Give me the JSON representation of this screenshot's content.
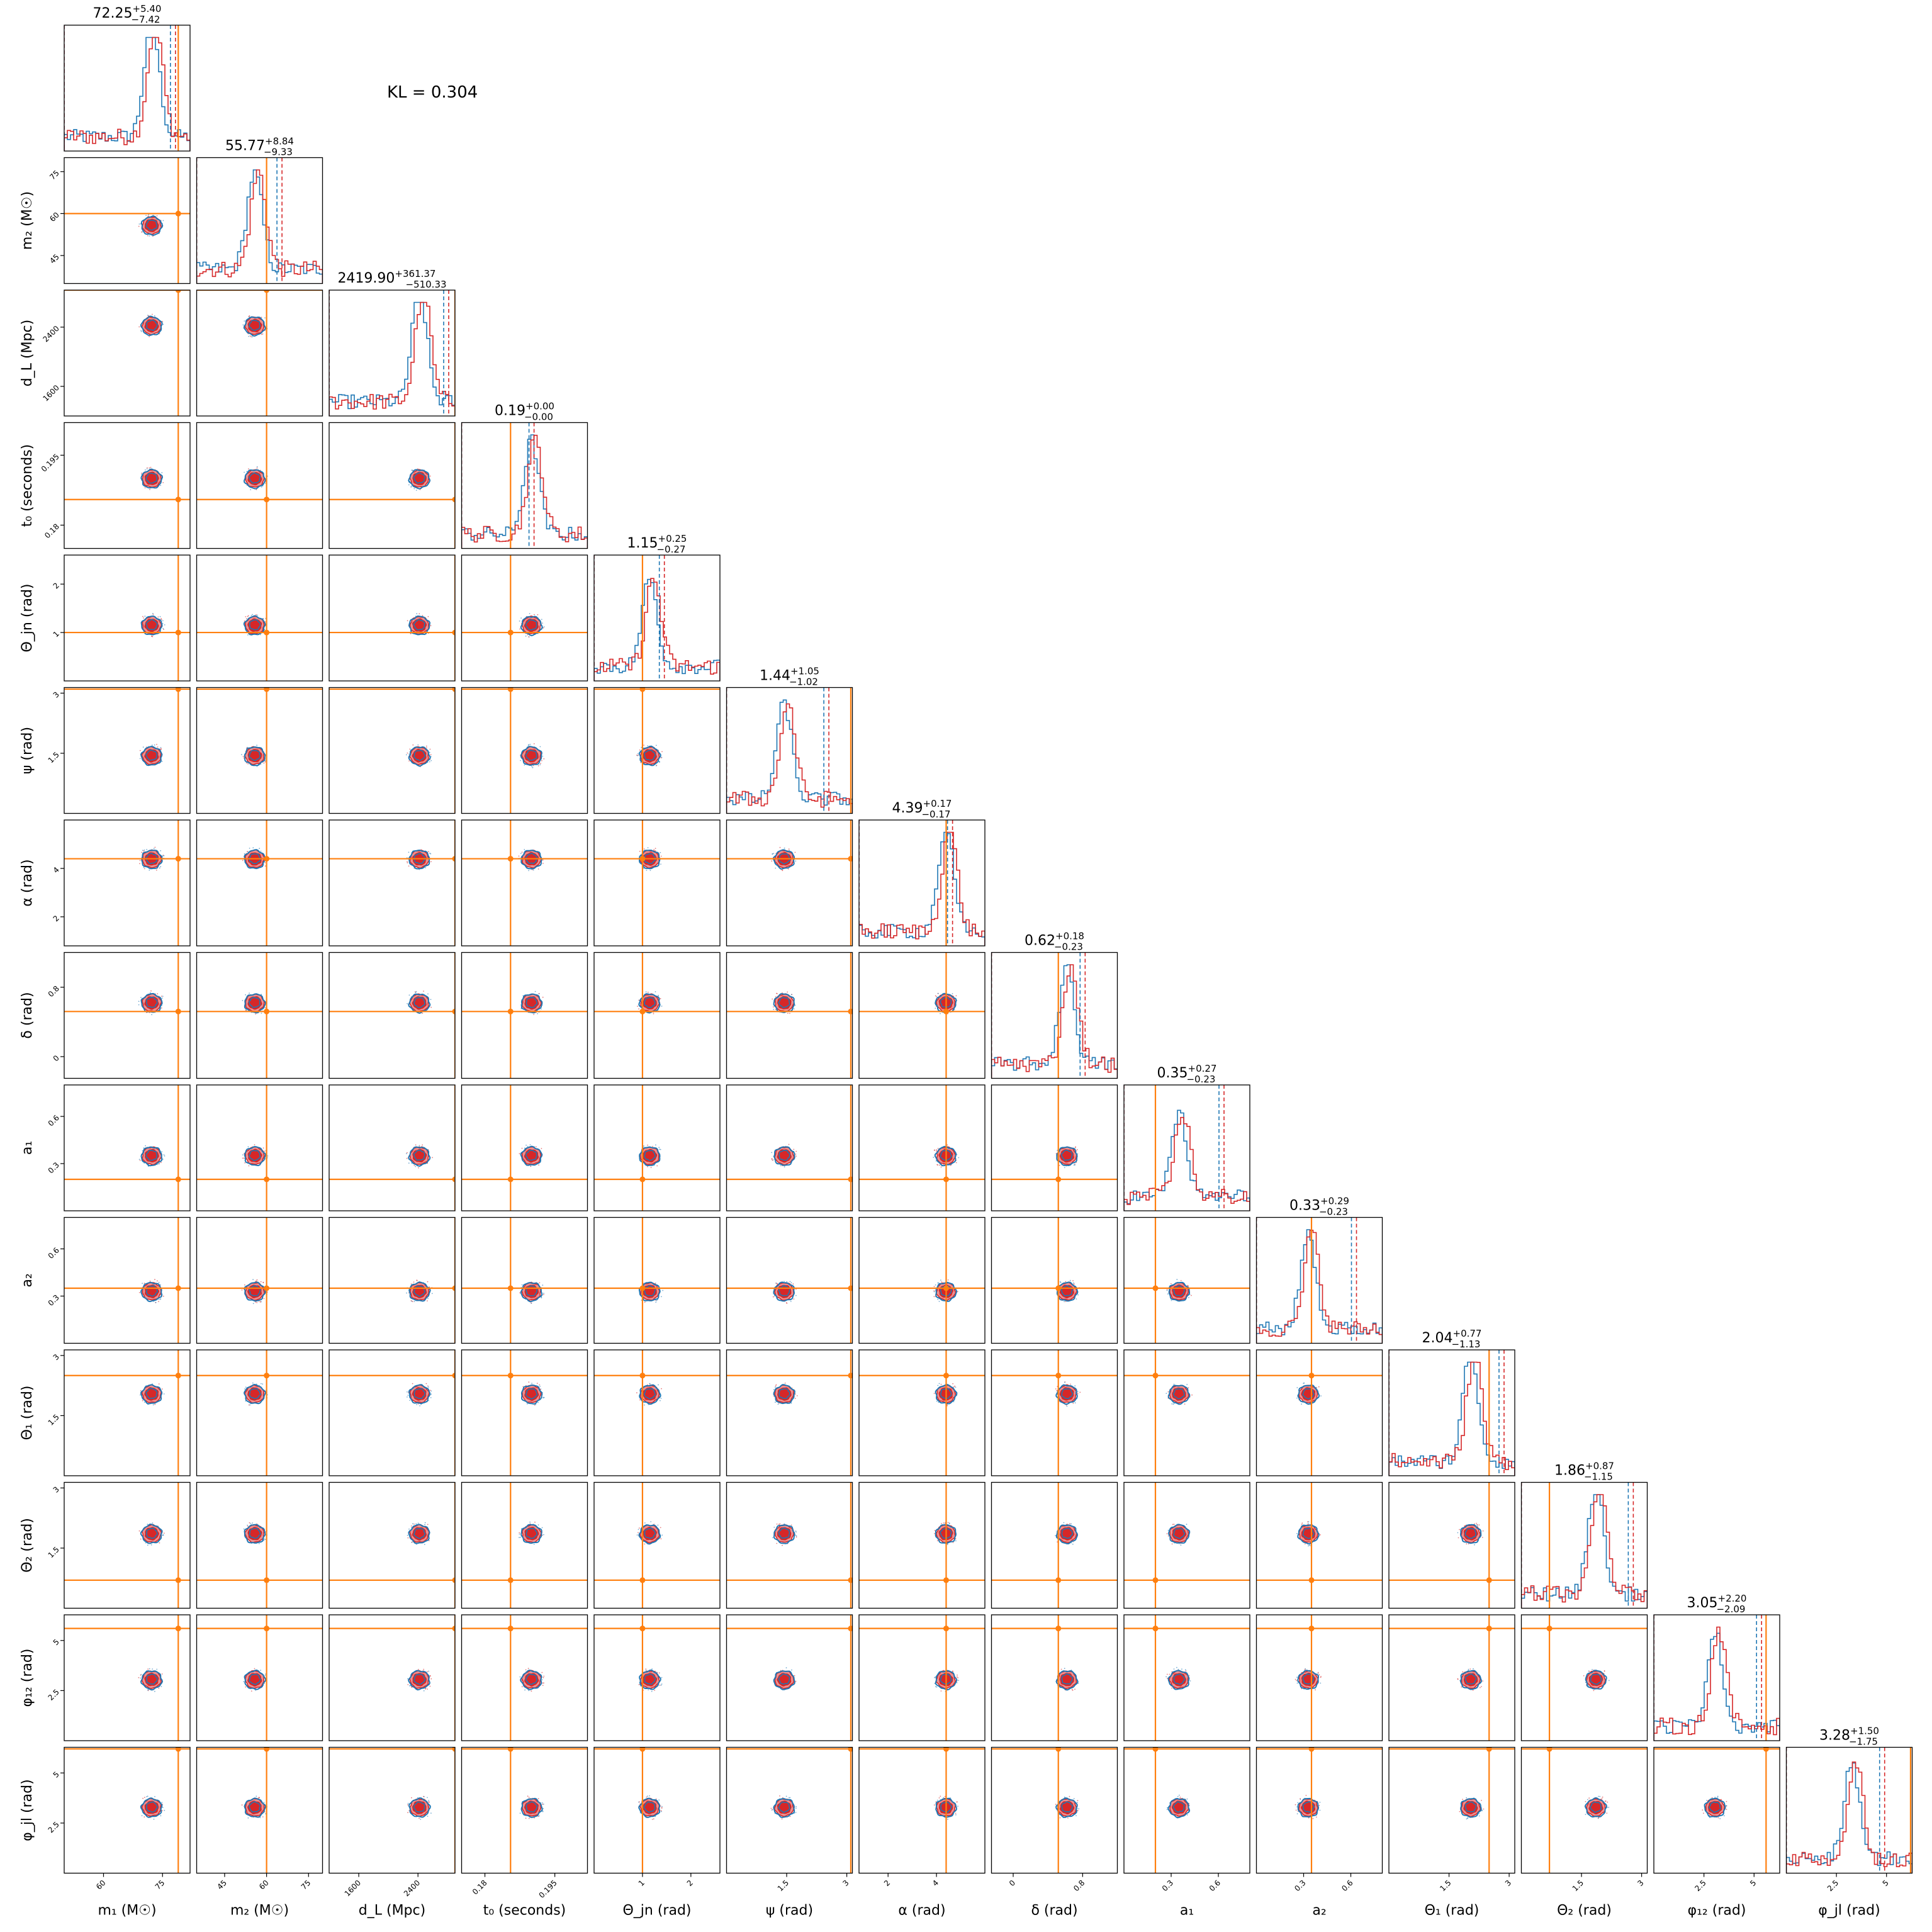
{
  "chart_data": {
    "type": "corner",
    "annotation": "KL = 0.304",
    "colors": {
      "samples_a": "#1f77b4",
      "samples_b": "#d62728",
      "truth": "#ff7f0e",
      "fill_dark": "#d62728",
      "fill_light": "#ee9090"
    },
    "parameters": [
      {
        "label": "m₁ (M☉)",
        "ylabel": "",
        "title": "72.25",
        "err_up": "+5.40",
        "err_down": "−7.42",
        "truth": 79,
        "range": [
          50,
          82
        ],
        "ticks": [
          60,
          75
        ],
        "hist_peak": 0.95
      },
      {
        "label": "m₂ (M☉)",
        "ylabel": "m₂ (M☉)",
        "title": "55.77",
        "err_up": "+8.84",
        "err_down": "−9.33",
        "truth": 60,
        "range": [
          35,
          80
        ],
        "ticks": [
          45,
          60,
          75
        ],
        "hist_peak": 0.55
      },
      {
        "label": "d_L (Mpc)",
        "ylabel": "d_L (Mpc)",
        "title": "2419.90",
        "err_up": "+361.37",
        "err_down": "−510.33",
        "truth": 2900,
        "range": [
          1200,
          2900
        ],
        "ticks": [
          1600,
          2400
        ],
        "hist_peak": 0.9
      },
      {
        "label": "t₀ (seconds)",
        "ylabel": "t₀ (seconds)",
        "title": "0.19",
        "err_up": "+0.00",
        "err_down": "−0.00",
        "truth": 0.1855,
        "range": [
          0.175,
          0.202
        ],
        "ticks": [
          0.18,
          0.195
        ],
        "hist_peak": 0.45
      },
      {
        "label": "Θ_jn (rad)",
        "ylabel": "Θ_jn (rad)",
        "title": "1.15",
        "err_up": "+0.25",
        "err_down": "−0.27",
        "truth": 1.0,
        "range": [
          0.0,
          2.6
        ],
        "ticks": [
          1,
          2
        ],
        "hist_peak": 0.3
      },
      {
        "label": "ψ (rad)",
        "ylabel": "ψ (rad)",
        "title": "1.44",
        "err_up": "+1.05",
        "err_down": "−1.02",
        "truth": 3.1,
        "range": [
          0.0,
          3.14
        ],
        "ticks": [
          1.5,
          3.0
        ],
        "hist_peak": 0.5
      },
      {
        "label": "α (rad)",
        "ylabel": "α (rad)",
        "title": "4.39",
        "err_up": "+0.17",
        "err_down": "−0.17",
        "truth": 4.4,
        "range": [
          0.8,
          6.0
        ],
        "ticks": [
          2,
          4
        ],
        "hist_peak": 0.7
      },
      {
        "label": "δ (rad)",
        "ylabel": "δ (rad)",
        "title": "0.62",
        "err_up": "+0.18",
        "err_down": "−0.23",
        "truth": 0.52,
        "range": [
          -0.25,
          1.2
        ],
        "ticks": [
          0.0,
          0.8
        ],
        "hist_peak": 0.6
      },
      {
        "label": "a₁",
        "ylabel": "a₁",
        "title": "0.35",
        "err_up": "+0.27",
        "err_down": "−0.23",
        "truth": 0.2,
        "range": [
          0.0,
          0.8
        ],
        "ticks": [
          0.3,
          0.6
        ],
        "hist_peak": 0.2
      },
      {
        "label": "a₂",
        "ylabel": "a₂",
        "title": "0.33",
        "err_up": "+0.29",
        "err_down": "−0.23",
        "truth": 0.35,
        "range": [
          0.0,
          0.8
        ],
        "ticks": [
          0.3,
          0.6
        ],
        "hist_peak": 0.5
      },
      {
        "label": "Θ₁ (rad)",
        "ylabel": "Θ₁ (rad)",
        "title": "2.04",
        "err_up": "+0.77",
        "err_down": "−1.13",
        "truth": 2.5,
        "range": [
          0.0,
          3.14
        ],
        "ticks": [
          1.5,
          3.0
        ],
        "hist_peak": 0.85
      },
      {
        "label": "Θ₂ (rad)",
        "ylabel": "Θ₂ (rad)",
        "title": "1.86",
        "err_up": "+0.87",
        "err_down": "−1.15",
        "truth": 0.7,
        "range": [
          0.0,
          3.14
        ],
        "ticks": [
          1.5,
          3.0
        ],
        "hist_peak": 0.85
      },
      {
        "label": "φ₁₂ (rad)",
        "ylabel": "φ₁₂ (rad)",
        "title": "3.05",
        "err_up": "+2.20",
        "err_down": "−2.09",
        "truth": 5.6,
        "range": [
          0.0,
          6.28
        ],
        "ticks": [
          2.5,
          5.0
        ],
        "hist_peak": 0.5
      },
      {
        "label": "φ_jl (rad)",
        "ylabel": "φ_jl (rad)",
        "title": "3.28",
        "err_up": "+1.50",
        "err_down": "−1.75",
        "truth": 6.2,
        "range": [
          0.0,
          6.28
        ],
        "ticks": [
          2.5,
          5.0
        ],
        "hist_peak": 0.5
      }
    ]
  }
}
